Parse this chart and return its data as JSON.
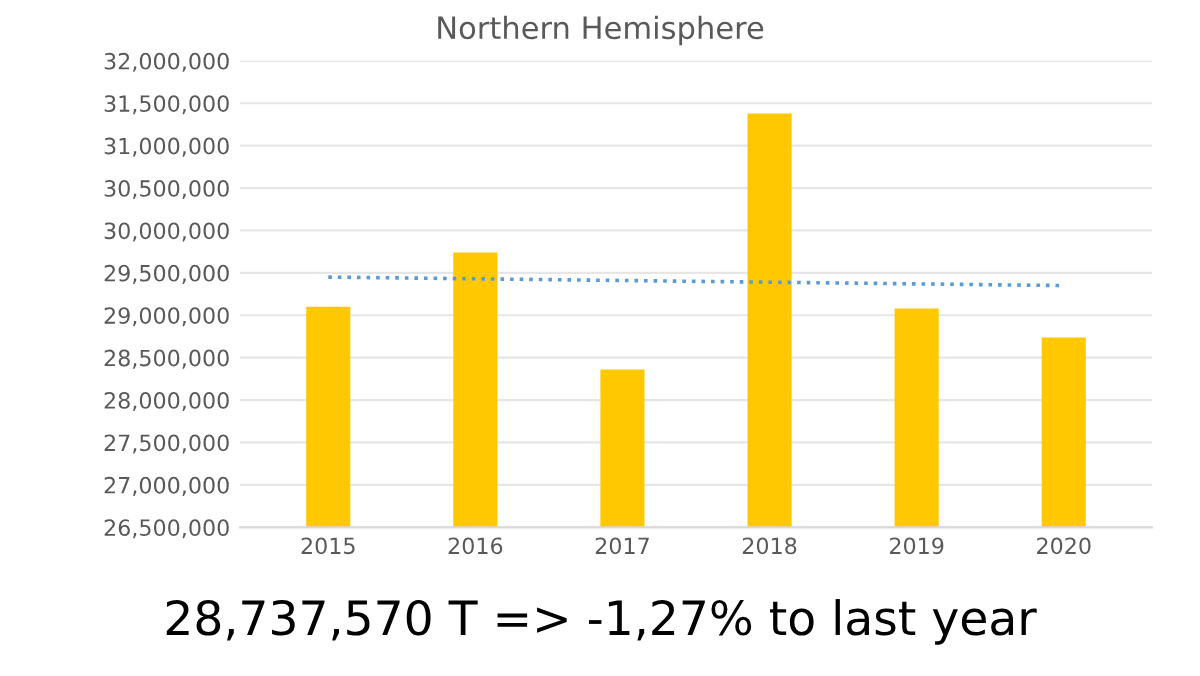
{
  "chart_data": {
    "type": "bar",
    "title": "Northern Hemisphere",
    "categories": [
      "2015",
      "2016",
      "2017",
      "2018",
      "2019",
      "2020"
    ],
    "series": [
      {
        "color": "#ffc800",
        "values": [
          29100000,
          29740000,
          28360000,
          31380000,
          29080000,
          28737570
        ]
      },
      {
        "type": "line",
        "color": "#5b9bd5",
        "line_style": "dotted",
        "marker": "none",
        "values": [
          29450000,
          29430000,
          29410000,
          29390000,
          29370000,
          29350000
        ]
      }
    ],
    "ylim": [
      26500000,
      32000000
    ],
    "yticks": [
      {
        "value": 26500000,
        "label": "26,500,000"
      },
      {
        "value": 27000000,
        "label": "27,000,000"
      },
      {
        "value": 27500000,
        "label": "27,500,000"
      },
      {
        "value": 28000000,
        "label": "28,000,000"
      },
      {
        "value": 28500000,
        "label": "28,500,000"
      },
      {
        "value": 29000000,
        "label": "29,000,000"
      },
      {
        "value": 29500000,
        "label": "29,500,000"
      },
      {
        "value": 30000000,
        "label": "30,000,000"
      },
      {
        "value": 30500000,
        "label": "30,500,000"
      },
      {
        "value": 31000000,
        "label": "31,000,000"
      },
      {
        "value": 31500000,
        "label": "31,500,000"
      },
      {
        "value": 32000000,
        "label": "32,000,000"
      }
    ],
    "grid": "y",
    "legend": false,
    "annotations": [
      "28,737,570 T => -1,27% to last year"
    ]
  }
}
